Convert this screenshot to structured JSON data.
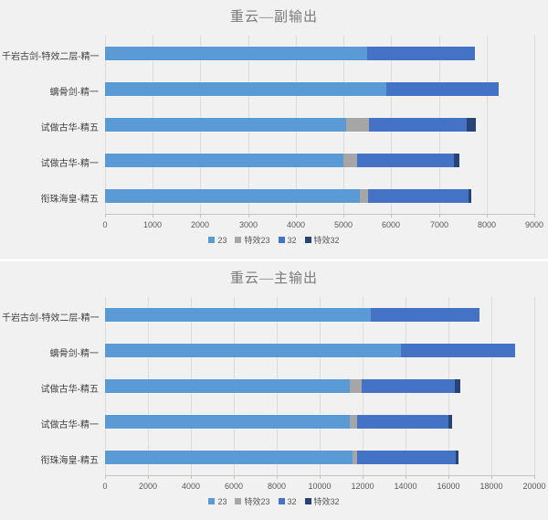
{
  "styles": {
    "panel_background": "#f1f1f1",
    "grid_color": "#dcdcdc",
    "axis_color": "#c3c3c3",
    "title_color": "#7a7a7a",
    "label_color": "#595959"
  },
  "chart_data": [
    {
      "type": "bar",
      "orientation": "horizontal",
      "stacked": true,
      "grid": true,
      "legend_position": "bottom",
      "title": "重云—副输出",
      "categories": [
        "千岩古剑-特效二层-精一",
        "螭骨剑-精一",
        "试做古华-精五",
        "试做古华-精一",
        "衔珠海皇-精五"
      ],
      "series": [
        {
          "name": "23",
          "color": "#5B9BD5",
          "values": [
            5500,
            5900,
            5050,
            5000,
            5350
          ]
        },
        {
          "name": "特效23",
          "color": "#A6A6A6",
          "values": [
            0,
            0,
            480,
            290,
            160
          ]
        },
        {
          "name": "32",
          "color": "#4472C4",
          "values": [
            2250,
            2350,
            2050,
            2020,
            2110
          ]
        },
        {
          "name": "特效32",
          "color": "#264478",
          "values": [
            0,
            0,
            200,
            120,
            60
          ]
        }
      ],
      "totals": [
        7750,
        8250,
        7780,
        7430,
        7680
      ],
      "xlim": [
        0,
        9000
      ],
      "xtick_step": 1000,
      "tick_labels": [
        "0",
        "1000",
        "2000",
        "3000",
        "4000",
        "5000",
        "6000",
        "7000",
        "8000",
        "9000"
      ]
    },
    {
      "type": "bar",
      "orientation": "horizontal",
      "stacked": true,
      "grid": true,
      "legend_position": "bottom",
      "title": "重云—主输出",
      "categories": [
        "千岩古剑-特效二层-精一",
        "螭骨剑-精一",
        "试做古华-精五",
        "试做古华-精一",
        "衔珠海皇-精五"
      ],
      "series": [
        {
          "name": "23",
          "color": "#5B9BD5",
          "values": [
            12400,
            13800,
            11400,
            11400,
            11550
          ]
        },
        {
          "name": "特效23",
          "color": "#A6A6A6",
          "values": [
            0,
            0,
            570,
            330,
            200
          ]
        },
        {
          "name": "32",
          "color": "#4472C4",
          "values": [
            5050,
            5300,
            4330,
            4280,
            4600
          ]
        },
        {
          "name": "特效32",
          "color": "#264478",
          "values": [
            0,
            0,
            250,
            150,
            100
          ]
        }
      ],
      "totals": [
        17450,
        19100,
        16550,
        16160,
        16450
      ],
      "xlim": [
        0,
        20000
      ],
      "xtick_step": 2000,
      "tick_labels": [
        "0",
        "2000",
        "4000",
        "6000",
        "8000",
        "10000",
        "12000",
        "14000",
        "16000",
        "18000",
        "20000"
      ]
    }
  ]
}
